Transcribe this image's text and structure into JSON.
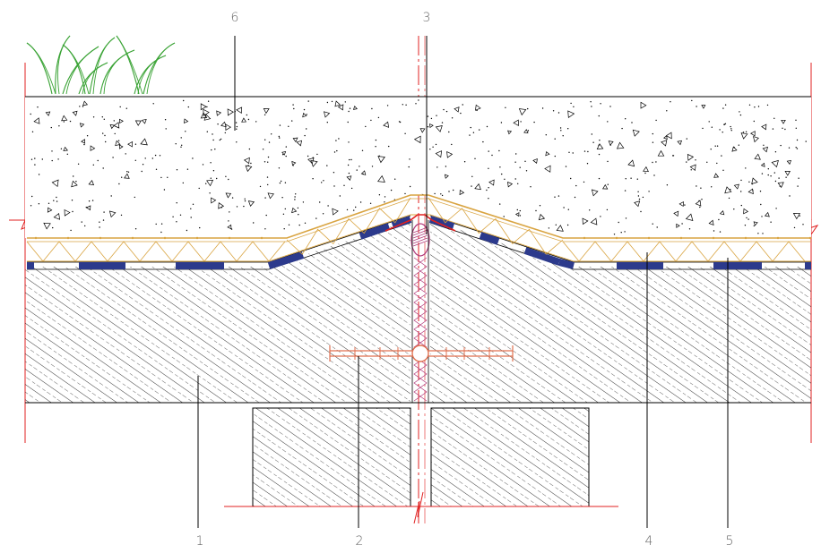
{
  "labels": {
    "l1": "1",
    "l2": "2",
    "l3": "3",
    "l4": "4",
    "l5": "5",
    "l6": "6"
  },
  "colors": {
    "line": "#000000",
    "hatch": "#000000",
    "membrane": "#2c3a8c",
    "insulation": "#d9a441",
    "grass": "#3aa335",
    "axis": "#e02020",
    "sealant": "#b0397a",
    "waterstop": "#e07050",
    "label": "#666666"
  }
}
